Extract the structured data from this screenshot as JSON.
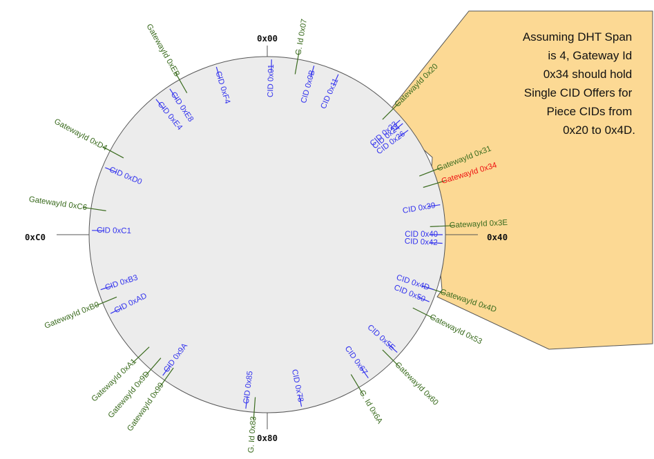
{
  "colors": {
    "gateway": "#3a6b1e",
    "cid": "#3333ee",
    "highlight_gateway": "#ee1111",
    "ring_fill": "#ececec",
    "ring_stroke": "#555555",
    "callout_fill": "#fcd994",
    "callout_stroke": "#555555"
  },
  "axis_labels": {
    "top": "0x00",
    "right": "0x40",
    "bottom": "0x80",
    "left": "0xC0"
  },
  "callout_lines": [
    "Assuming DHT Span",
    "is 4, Gateway Id",
    "0x34 should hold",
    "Single CID Offers for",
    "Piece CIDs from",
    "0x20 to 0x4D."
  ],
  "gateways": [
    {
      "id": 7,
      "label": "G. Id 0x07"
    },
    {
      "id": 32,
      "label": "GatewayId 0x20"
    },
    {
      "id": 49,
      "label": "GatewayId 0x31"
    },
    {
      "id": 52,
      "label": "GatewayId 0x34",
      "highlight": true
    },
    {
      "id": 62,
      "label": "GatewayId 0x3E"
    },
    {
      "id": 77,
      "label": "GatewayId 0x4D"
    },
    {
      "id": 83,
      "label": "GatewayId 0x53"
    },
    {
      "id": 96,
      "label": "GatewayId 0x60"
    },
    {
      "id": 106,
      "label": "G. Id 0x6A"
    },
    {
      "id": 131,
      "label": "G. Id 0x83"
    },
    {
      "id": 153,
      "label": "GatewayId 0x99"
    },
    {
      "id": 157,
      "label": "GatewayId 0x9D"
    },
    {
      "id": 161,
      "label": "GatewayId 0xA1"
    },
    {
      "id": 176,
      "label": "GatewayId 0xB0"
    },
    {
      "id": 198,
      "label": "GatewayId 0xC6"
    },
    {
      "id": 212,
      "label": "GatewayId 0xD4"
    },
    {
      "id": 235,
      "label": "GatewayId 0xEB"
    }
  ],
  "cids": [
    {
      "id": 1,
      "label": "CID 0x01"
    },
    {
      "id": 11,
      "label": "CID 0x0B"
    },
    {
      "id": 17,
      "label": "CID 0x11"
    },
    {
      "id": 35,
      "label": "CID 0x23"
    },
    {
      "id": 36,
      "label": "CID 0x24"
    },
    {
      "id": 38,
      "label": "CID 0x26"
    },
    {
      "id": 57,
      "label": "CID 0x39"
    },
    {
      "id": 64,
      "label": "CID 0x40"
    },
    {
      "id": 66,
      "label": "CID 0x42"
    },
    {
      "id": 77,
      "label": "CID 0x4D"
    },
    {
      "id": 80,
      "label": "CID 0x50"
    },
    {
      "id": 94,
      "label": "CID 0x5E"
    },
    {
      "id": 103,
      "label": "CID 0x67"
    },
    {
      "id": 120,
      "label": "CID 0x78"
    },
    {
      "id": 133,
      "label": "CID 0x85"
    },
    {
      "id": 154,
      "label": "CID 0x9A"
    },
    {
      "id": 173,
      "label": "CID 0xAD"
    },
    {
      "id": 179,
      "label": "CID 0xB3"
    },
    {
      "id": 193,
      "label": "CID 0xC1"
    },
    {
      "id": 208,
      "label": "CID 0xD0"
    },
    {
      "id": 228,
      "label": "CID 0xE4"
    },
    {
      "id": 232,
      "label": "CID 0xE8"
    },
    {
      "id": 244,
      "label": "CID 0xF4"
    }
  ]
}
